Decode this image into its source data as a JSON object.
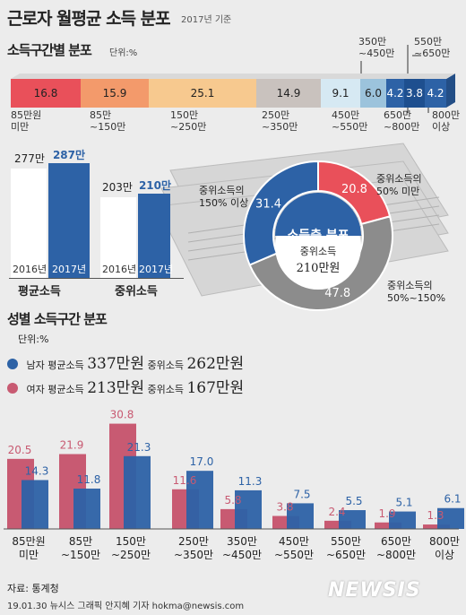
{
  "header": {
    "title": "근로자 월평균 소득 분포",
    "subtitle": "2017년 기준"
  },
  "section1": {
    "title": "소득구간별 분포",
    "unit": "단위:%"
  },
  "stacked": {
    "values": [
      "16.8",
      "15.9",
      "25.1",
      "14.9",
      "9.1",
      "6.0",
      "4.2",
      "3.8",
      "4.2"
    ],
    "colors": [
      "#e9505a",
      "#f39a6b",
      "#f7c98f",
      "#c9c2be",
      "#d6e9f3",
      "#9cc3dc",
      "#2d62a6",
      "#1e4f8f",
      "#2d62a6"
    ],
    "labels_bottom": [
      [
        "85만원",
        "미만"
      ],
      [
        "85만",
        "~150만"
      ],
      [
        "150만",
        "~250만"
      ],
      [
        "250만",
        "~350만"
      ],
      [
        "450만",
        "~550만"
      ],
      [
        "650만",
        "~800만"
      ],
      [
        "800만",
        "이상"
      ]
    ],
    "labels_top": [
      [
        "350만",
        "~450만"
      ],
      [
        "550만",
        "~650만"
      ]
    ]
  },
  "incomes": {
    "avg": {
      "label": "평균소득",
      "v2016": "277만",
      "v2017": "287만",
      "y2016": "2016년",
      "y2017": "2017년"
    },
    "median": {
      "label": "중위소득",
      "v2016": "203만",
      "v2017": "210만",
      "y2016": "2016년",
      "y2017": "2017년"
    }
  },
  "donut": {
    "center_title": "소득층 분포",
    "center_sub1": "중위소득",
    "center_sub2": "210만원",
    "slices": [
      {
        "value": 20.8,
        "text": "20.8",
        "color": "#e9505a",
        "label": [
          "중위소득의",
          "50% 미만"
        ]
      },
      {
        "value": 47.8,
        "text": "47.8",
        "color": "#8c8c8c",
        "label": [
          "중위소득의",
          "50%~150%"
        ]
      },
      {
        "value": 31.4,
        "text": "31.4",
        "color": "#2d62a6",
        "label": [
          "중위소득의",
          "150% 이상"
        ]
      }
    ]
  },
  "section2": {
    "title": "성별 소득구간 분포",
    "unit": "단위:%"
  },
  "legend": {
    "male": {
      "name": "남자",
      "avg_label": "평균소득",
      "avg_value": "337만원",
      "med_label": "중위소득",
      "med_value": "262만원",
      "color": "#2d62a6"
    },
    "female": {
      "name": "여자",
      "avg_label": "평균소득",
      "avg_value": "213만원",
      "med_label": "중위소득",
      "med_value": "167만원",
      "color": "#c85a72"
    }
  },
  "chart_data": {
    "type": "bar",
    "categories": [
      [
        "85만원",
        "미만"
      ],
      [
        "85만",
        "~150만"
      ],
      [
        "150만",
        "~250만"
      ],
      [
        "250만",
        "~350만"
      ],
      [
        "350만",
        "~450만"
      ],
      [
        "450만",
        "~550만"
      ],
      [
        "550만",
        "~650만"
      ],
      [
        "650만",
        "~800만"
      ],
      [
        "800만",
        "이상"
      ]
    ],
    "series": [
      {
        "name": "여자",
        "values": [
          20.5,
          21.9,
          30.8,
          11.6,
          5.8,
          3.8,
          2.4,
          1.9,
          1.3
        ],
        "color": "#c85a72"
      },
      {
        "name": "남자",
        "values": [
          14.3,
          11.8,
          21.3,
          17.0,
          11.3,
          7.5,
          5.5,
          5.1,
          6.1
        ],
        "color": "#2d62a6"
      }
    ],
    "ylim": [
      0,
      32
    ]
  },
  "footer": {
    "source": "자료: 통계청",
    "credit": "19.01.30 뉴시스 그래픽 안지혜 기자 hokma@newsis.com",
    "logo": "NEWSIS"
  }
}
